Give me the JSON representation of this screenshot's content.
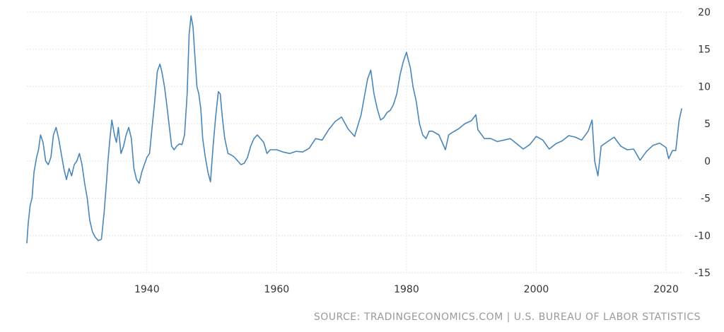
{
  "source": "SOURCE: TRADINGECONOMICS.COM | U.S. BUREAU OF LABOR STATISTICS",
  "colors": {
    "series": "#4a86b8",
    "grid": "#e6e6e6",
    "tick_text": "#333333",
    "source_text": "#999999"
  },
  "chart_data": {
    "type": "line",
    "title": "",
    "xlabel": "",
    "ylabel": "",
    "xlim": [
      1921.5,
      2022.5
    ],
    "ylim": [
      -15,
      20
    ],
    "grid": true,
    "y_axis_side": "right",
    "x_ticks": [
      1940,
      1960,
      1980,
      2000,
      2020
    ],
    "x_tick_labels": [
      "1940",
      "1960",
      "1980",
      "2000",
      "2020"
    ],
    "y_ticks": [
      20,
      15,
      10,
      5,
      0,
      -5,
      -10,
      -15
    ],
    "y_tick_labels": [
      "20",
      "15",
      "10",
      "5",
      "0",
      "-5",
      "-10",
      "-15"
    ],
    "series": [
      {
        "x": [
          1921.5,
          1921.7,
          1922.0,
          1922.3,
          1922.6,
          1923.0,
          1923.3,
          1923.6,
          1924.0,
          1924.4,
          1924.8,
          1925.2,
          1925.6,
          1926.0,
          1926.4,
          1926.8,
          1927.2,
          1927.6,
          1928.0,
          1928.4,
          1928.8,
          1929.2,
          1929.6,
          1930.0,
          1930.4,
          1930.8,
          1931.2,
          1931.6,
          1932.0,
          1932.5,
          1933.0,
          1933.4,
          1933.8,
          1934.0,
          1934.3,
          1934.6,
          1935.0,
          1935.3,
          1935.6,
          1936.0,
          1936.4,
          1936.8,
          1937.2,
          1937.6,
          1938.0,
          1938.4,
          1938.8,
          1939.2,
          1939.6,
          1940.0,
          1940.4,
          1940.8,
          1941.2,
          1941.6,
          1942.0,
          1942.3,
          1942.7,
          1943.0,
          1943.4,
          1943.8,
          1944.2,
          1944.6,
          1945.0,
          1945.4,
          1945.8,
          1946.2,
          1946.5,
          1946.8,
          1947.1,
          1947.4,
          1947.7,
          1948.0,
          1948.3,
          1948.6,
          1949.0,
          1949.4,
          1949.8,
          1950.2,
          1950.6,
          1951.0,
          1951.3,
          1951.6,
          1952.0,
          1952.5,
          1953.0,
          1953.5,
          1954.0,
          1954.5,
          1955.0,
          1955.5,
          1956.0,
          1956.5,
          1957.0,
          1957.5,
          1958.0,
          1958.5,
          1959.0,
          1959.5,
          1960.0,
          1961.0,
          1962.0,
          1963.0,
          1964.0,
          1965.0,
          1966.0,
          1967.0,
          1968.0,
          1969.0,
          1970.0,
          1971.0,
          1972.0,
          1973.0,
          1974.0,
          1974.5,
          1975.0,
          1975.5,
          1976.0,
          1976.5,
          1977.0,
          1977.5,
          1978.0,
          1978.5,
          1979.0,
          1979.5,
          1980.0,
          1980.3,
          1980.6,
          1981.0,
          1981.5,
          1982.0,
          1982.5,
          1983.0,
          1983.5,
          1984.0,
          1985.0,
          1986.0,
          1986.5,
          1987.0,
          1988.0,
          1989.0,
          1990.0,
          1990.7,
          1991.0,
          1992.0,
          1993.0,
          1994.0,
          1995.0,
          1996.0,
          1997.0,
          1998.0,
          1999.0,
          2000.0,
          2001.0,
          2002.0,
          2003.0,
          2004.0,
          2005.0,
          2006.0,
          2007.0,
          2008.0,
          2008.6,
          2009.0,
          2009.5,
          2010.0,
          2011.0,
          2012.0,
          2013.0,
          2014.0,
          2015.0,
          2016.0,
          2017.0,
          2018.0,
          2019.0,
          2020.0,
          2020.4,
          2021.0,
          2021.5,
          2022.0,
          2022.4
        ],
        "values": [
          -11.0,
          -8.5,
          -6.0,
          -5.0,
          -1.5,
          0.5,
          1.5,
          3.5,
          2.5,
          0.0,
          -0.5,
          0.5,
          3.5,
          4.5,
          3.0,
          1.0,
          -1.0,
          -2.5,
          -1.0,
          -2.0,
          -0.5,
          0.0,
          1.0,
          -0.5,
          -3.0,
          -5.0,
          -8.0,
          -9.5,
          -10.2,
          -10.7,
          -10.5,
          -7.0,
          -2.5,
          0.0,
          3.0,
          5.5,
          3.5,
          2.5,
          4.5,
          1.0,
          2.0,
          3.5,
          4.5,
          3.0,
          -1.0,
          -2.5,
          -3.0,
          -1.5,
          -0.5,
          0.5,
          1.0,
          4.5,
          8.0,
          12.0,
          13.0,
          12.0,
          10.0,
          8.0,
          5.0,
          2.0,
          1.5,
          2.0,
          2.3,
          2.2,
          3.5,
          9.0,
          17.0,
          19.5,
          18.0,
          14.0,
          10.0,
          9.0,
          7.0,
          3.0,
          0.5,
          -1.5,
          -2.8,
          2.0,
          6.0,
          9.3,
          9.0,
          6.0,
          3.0,
          1.0,
          0.8,
          0.5,
          0.0,
          -0.5,
          -0.3,
          0.5,
          2.0,
          3.0,
          3.5,
          3.0,
          2.5,
          1.0,
          1.5,
          1.5,
          1.5,
          1.2,
          1.0,
          1.3,
          1.2,
          1.7,
          3.0,
          2.8,
          4.2,
          5.3,
          5.9,
          4.3,
          3.3,
          6.2,
          11.0,
          12.2,
          9.0,
          7.0,
          5.5,
          5.8,
          6.5,
          6.8,
          7.6,
          9.0,
          11.5,
          13.3,
          14.6,
          13.5,
          12.5,
          10.0,
          8.0,
          5.0,
          3.5,
          3.0,
          4.0,
          4.0,
          3.5,
          1.5,
          3.5,
          3.8,
          4.3,
          5.0,
          5.4,
          6.2,
          4.2,
          3.0,
          3.0,
          2.6,
          2.8,
          3.0,
          2.3,
          1.6,
          2.2,
          3.3,
          2.8,
          1.6,
          2.3,
          2.7,
          3.4,
          3.2,
          2.8,
          4.0,
          5.5,
          0.0,
          -2.0,
          2.0,
          2.6,
          3.2,
          2.0,
          1.5,
          1.6,
          0.1,
          1.3,
          2.1,
          2.4,
          1.8,
          0.3,
          1.4,
          1.4,
          5.4,
          7.0
        ]
      }
    ]
  }
}
